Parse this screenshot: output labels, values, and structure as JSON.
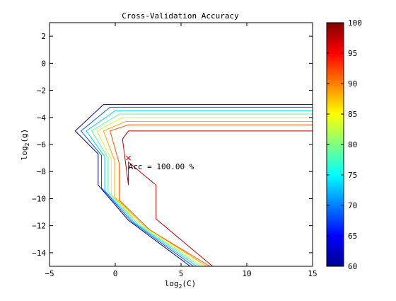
{
  "chart_data": {
    "type": "contour",
    "title": "Cross-Validation Accuracy",
    "xlabel": {
      "base": "log",
      "sub": "2",
      "rest": "(C)"
    },
    "ylabel": {
      "base": "log",
      "sub": "2",
      "rest": "(g)"
    },
    "xlim": [
      -5,
      15
    ],
    "ylim": [
      -15,
      3
    ],
    "xticks": [
      -5,
      0,
      5,
      10,
      15
    ],
    "yticks": [
      2,
      0,
      -2,
      -4,
      -6,
      -8,
      -10,
      -12,
      -14
    ],
    "xtick_labels": [
      "−5",
      "0",
      "5",
      "10",
      "15"
    ],
    "ytick_labels": [
      "2",
      "0",
      "−2",
      "−4",
      "−6",
      "−8",
      "−10",
      "−12",
      "−14"
    ],
    "grid": false,
    "annotation": {
      "text": "Acc = 100.00 %",
      "x": 1.0,
      "y": -7.0,
      "marker": "x"
    },
    "colorbar": {
      "range": [
        60,
        100
      ],
      "ticks": [
        60,
        65,
        70,
        75,
        80,
        85,
        90,
        95,
        100
      ],
      "tick_labels": [
        "60",
        "65",
        "70",
        "75",
        "80",
        "85",
        "90",
        "95",
        "100"
      ],
      "colormap": "jet"
    },
    "contours": [
      {
        "level": 60,
        "color": "#00008f",
        "points": [
          [
            15,
            -3.05
          ],
          [
            -0.9,
            -3.05
          ],
          [
            -3.05,
            -5.0
          ],
          [
            -1.3,
            -6.7
          ],
          [
            -1.3,
            -9.0
          ],
          [
            1.0,
            -11.6
          ],
          [
            5.7,
            -15.0
          ]
        ]
      },
      {
        "level": 65,
        "color": "#0055ff",
        "points": [
          [
            15,
            -3.25
          ],
          [
            -0.4,
            -3.25
          ],
          [
            -2.6,
            -5.0
          ],
          [
            -1.05,
            -6.8
          ],
          [
            -1.05,
            -9.2
          ],
          [
            1.25,
            -11.7
          ],
          [
            5.95,
            -15.0
          ]
        ]
      },
      {
        "level": 70,
        "color": "#00d4ff",
        "points": [
          [
            15,
            -3.5
          ],
          [
            0.0,
            -3.5
          ],
          [
            -2.2,
            -5.0
          ],
          [
            -0.8,
            -6.9
          ],
          [
            -0.8,
            -9.4
          ],
          [
            1.5,
            -11.8
          ],
          [
            6.2,
            -15.0
          ]
        ]
      },
      {
        "level": 75,
        "color": "#55ffaa",
        "points": [
          [
            15,
            -3.75
          ],
          [
            0.3,
            -3.75
          ],
          [
            -1.8,
            -5.0
          ],
          [
            -0.55,
            -7.0
          ],
          [
            -0.55,
            -9.5
          ],
          [
            1.75,
            -11.9
          ],
          [
            6.45,
            -15.0
          ]
        ]
      },
      {
        "level": 80,
        "color": "#d4ff2b",
        "points": [
          [
            15,
            -4.0
          ],
          [
            0.55,
            -4.0
          ],
          [
            -1.4,
            -5.0
          ],
          [
            -0.3,
            -7.1
          ],
          [
            -0.3,
            -9.7
          ],
          [
            2.0,
            -12.0
          ],
          [
            6.7,
            -15.0
          ]
        ]
      },
      {
        "level": 85,
        "color": "#ffaa00",
        "points": [
          [
            15,
            -4.3
          ],
          [
            0.8,
            -4.3
          ],
          [
            -0.9,
            -5.0
          ],
          [
            -0.05,
            -7.2
          ],
          [
            -0.05,
            -9.9
          ],
          [
            2.3,
            -12.1
          ],
          [
            6.95,
            -15.0
          ]
        ]
      },
      {
        "level": 90,
        "color": "#ff5500",
        "points": [
          [
            15,
            -4.55
          ],
          [
            1.0,
            -4.55
          ],
          [
            -0.4,
            -5.0
          ],
          [
            0.3,
            -7.4
          ],
          [
            0.3,
            -10.1
          ],
          [
            2.6,
            -12.3
          ],
          [
            7.2,
            -15.0
          ]
        ]
      },
      {
        "level": 95,
        "color": "#bf0000",
        "closed": true,
        "points": [
          [
            1.0,
            -5.0
          ],
          [
            15,
            -5.0
          ],
          [
            15,
            -15
          ],
          [
            7.4,
            -15.0
          ],
          [
            3.1,
            -11.5
          ],
          [
            3.1,
            -9.0
          ],
          [
            2.1,
            -8.2
          ],
          [
            1.0,
            -7.3
          ],
          [
            1.0,
            -9.0
          ],
          [
            0.55,
            -5.6
          ]
        ]
      }
    ]
  }
}
